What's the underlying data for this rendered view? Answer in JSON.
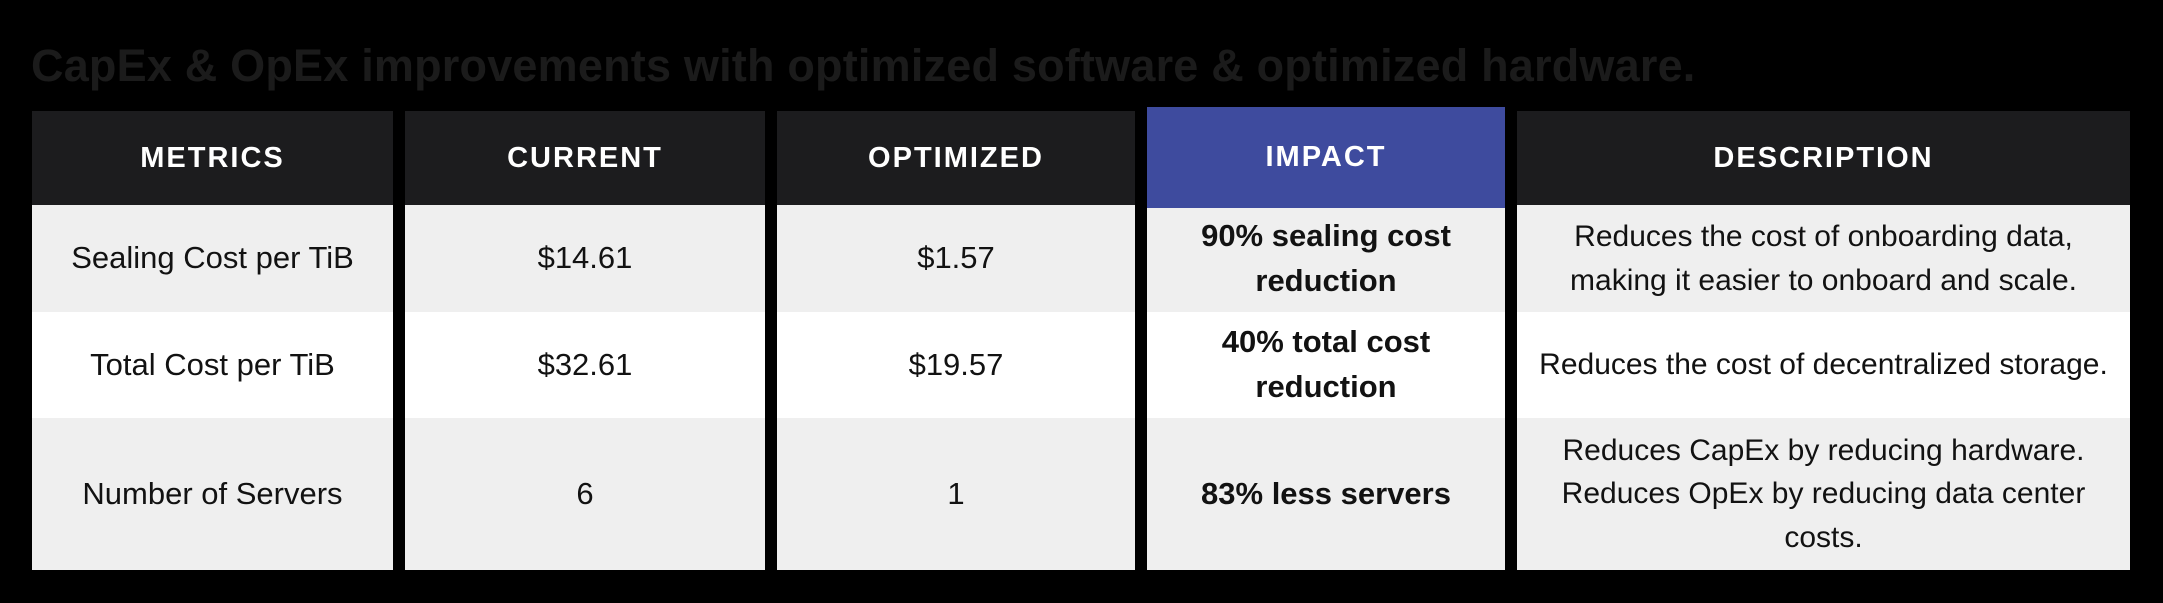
{
  "title": {
    "text": "CapEx & OpEx improvements with optimized software & optimized hardware."
  },
  "colors": {
    "page_background": "#000000",
    "title_text": "#1b1b1b",
    "header_background": "#1c1c1e",
    "header_text": "#ffffff",
    "impact_header_background": "#3e4b9e",
    "row_odd_background": "#efefef",
    "row_even_background": "#ffffff",
    "body_text": "#121212"
  },
  "table": {
    "columns": [
      {
        "key": "metric",
        "label": "METRICS"
      },
      {
        "key": "current",
        "label": "CURRENT"
      },
      {
        "key": "optimized",
        "label": "OPTIMIZED"
      },
      {
        "key": "impact",
        "label": "IMPACT",
        "highlighted": true
      },
      {
        "key": "description",
        "label": "DESCRIPTION"
      }
    ],
    "rows": [
      {
        "metric": "Sealing Cost per TiB",
        "current": "$14.61",
        "optimized": "$1.57",
        "impact": "90% sealing cost reduction",
        "description": "Reduces the cost of onboarding data, making it easier to onboard and scale."
      },
      {
        "metric": "Total Cost per TiB",
        "current": "$32.61",
        "optimized": "$19.57",
        "impact": "40% total cost reduction",
        "description": "Reduces the cost of decentralized storage."
      },
      {
        "metric": "Number of Servers",
        "current": "6",
        "optimized": "1",
        "impact": "83% less servers",
        "description": "Reduces CapEx by reducing hardware. Reduces OpEx by reducing data center costs."
      }
    ]
  }
}
